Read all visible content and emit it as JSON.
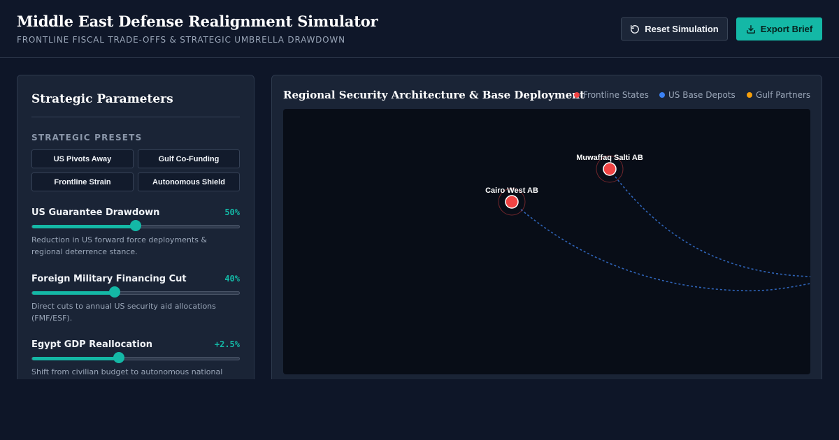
{
  "header": {
    "title": "Middle East Defense Realignment Simulator",
    "subtitle": "FRONTLINE FISCAL TRADE-OFFS & STRATEGIC UMBRELLA DRAWDOWN",
    "reset_label": "Reset Simulation",
    "export_label": "Export Brief",
    "reset_icon": "refresh-icon",
    "export_icon": "download-icon"
  },
  "parameters": {
    "title": "Strategic Parameters",
    "presets_label": "STRATEGIC PRESETS",
    "presets": [
      "US Pivots Away",
      "Gulf Co-Funding",
      "Frontline Strain",
      "Autonomous Shield"
    ],
    "sliders": [
      {
        "name": "US Guarantee Drawdown",
        "value_text": "50%",
        "level": 0.5,
        "description": "Reduction in US forward force deployments & regional deterrence stance."
      },
      {
        "name": "Foreign Military Financing Cut",
        "value_text": "40%",
        "level": 0.4,
        "description": "Direct cuts to annual US security aid allocations (FMF/ESF)."
      },
      {
        "name": "Egypt GDP Reallocation",
        "value_text": "+2.5%",
        "level": 0.42,
        "description": "Shift from civilian budget to autonomous national"
      }
    ]
  },
  "map": {
    "title": "Regional Security Architecture & Base Deployment",
    "legend": [
      {
        "label": "Frontline States",
        "color": "#ef4444"
      },
      {
        "label": "US Base Depots",
        "color": "#3b82f6"
      },
      {
        "label": "Gulf Partners",
        "color": "#f59e0b"
      }
    ],
    "nodes": [
      {
        "label": "Muwaffaq Salti AB",
        "type": "Frontline States"
      },
      {
        "label": "Cairo West AB",
        "type": "Frontline States"
      }
    ]
  },
  "colors": {
    "accent": "#14b8a6",
    "background": "#0e1628",
    "panel": "#1a2436",
    "link": "#3b82f6",
    "frontline": "#ef4444"
  }
}
